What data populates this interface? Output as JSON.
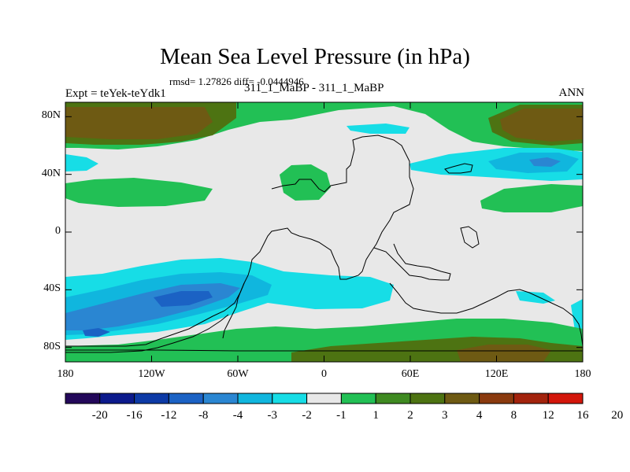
{
  "title": "Mean Sea Level Pressure (in hPa)",
  "stats": "rmsd= 1.27826 diff= -0.0444946",
  "left_title": "Expt = teYek-teYdk1",
  "center_title": "311_1_MaBP - 311_1_MaBP",
  "right_title": "ANN",
  "map": {
    "lat_ticks": [
      {
        "label": "80N",
        "lat": 80
      },
      {
        "label": "40N",
        "lat": 40
      },
      {
        "label": "0",
        "lat": 0
      },
      {
        "label": "40S",
        "lat": -40
      },
      {
        "label": "80S",
        "lat": -80
      }
    ],
    "lon_ticks": [
      {
        "label": "180",
        "lon": -180
      },
      {
        "label": "120W",
        "lon": -120
      },
      {
        "label": "60W",
        "lon": -60
      },
      {
        "label": "0",
        "lon": 0
      },
      {
        "label": "60E",
        "lon": 60
      },
      {
        "label": "120E",
        "lon": 120
      },
      {
        "label": "180",
        "lon": 180
      }
    ]
  },
  "colorbar": {
    "colors": [
      "#23085a",
      "#0c1a8c",
      "#0d3aa6",
      "#1b62c4",
      "#2a86d2",
      "#10b6de",
      "#17dde6",
      "#e8e8e8",
      "#22c055",
      "#3f8a21",
      "#4d7312",
      "#6e5a13",
      "#8a3a0e",
      "#a3230d",
      "#d3160b"
    ],
    "labels": [
      "-20",
      "-16",
      "-12",
      "-8",
      "-4",
      "-3",
      "-2",
      "-1",
      "1",
      "2",
      "3",
      "4",
      "8",
      "12",
      "16",
      "20"
    ]
  }
}
